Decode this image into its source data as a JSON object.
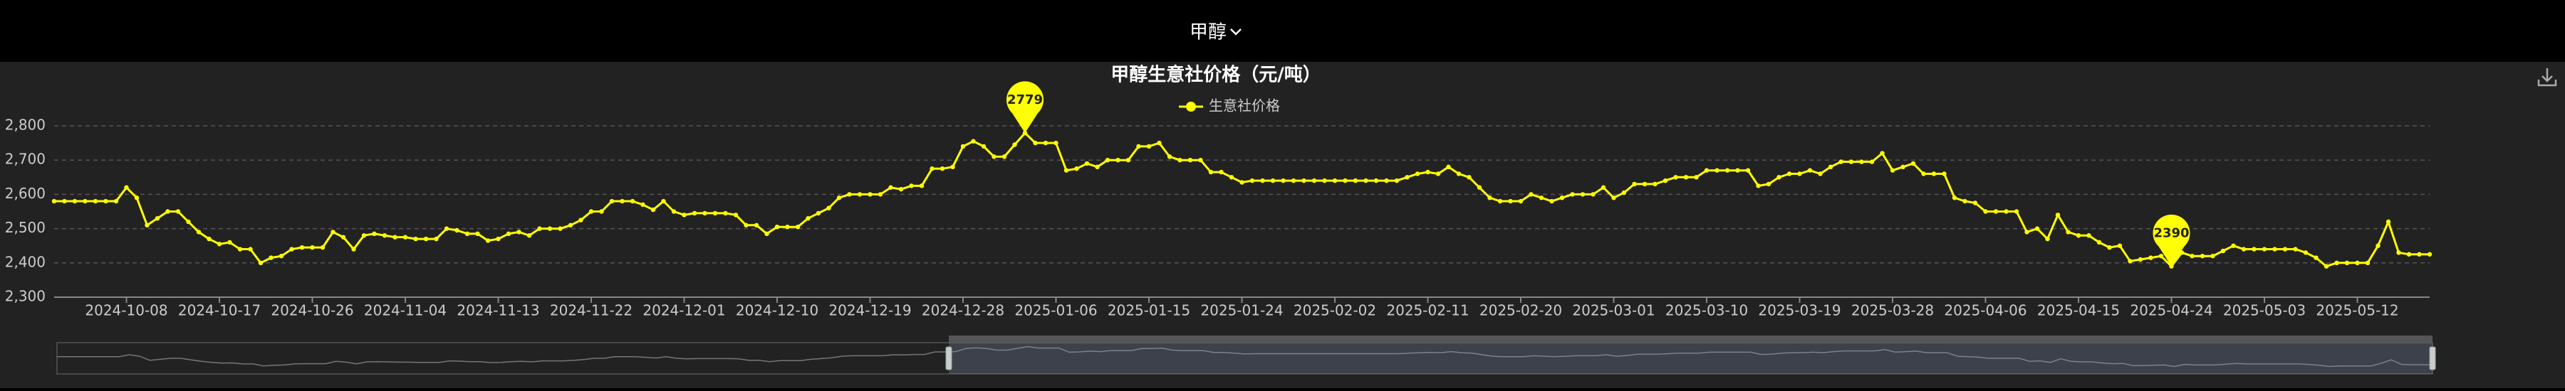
{
  "header": {
    "selector": "甲醇"
  },
  "chart_data": {
    "type": "line",
    "title": "甲醇生意社价格（元/吨）",
    "categories": [
      null,
      null,
      null,
      null,
      null,
      null,
      null,
      "2024-10-08",
      null,
      null,
      null,
      null,
      null,
      null,
      null,
      null,
      "2024-10-17",
      null,
      null,
      null,
      null,
      null,
      null,
      null,
      null,
      "2024-10-26",
      null,
      null,
      null,
      null,
      null,
      null,
      null,
      null,
      "2024-11-04",
      null,
      null,
      null,
      null,
      null,
      null,
      null,
      null,
      "2024-11-13",
      null,
      null,
      null,
      null,
      null,
      null,
      null,
      null,
      "2024-11-22",
      null,
      null,
      null,
      null,
      null,
      null,
      null,
      null,
      "2024-12-01",
      null,
      null,
      null,
      null,
      null,
      null,
      null,
      null,
      "2024-12-10",
      null,
      null,
      null,
      null,
      null,
      null,
      null,
      null,
      "2024-12-19",
      null,
      null,
      null,
      null,
      null,
      null,
      null,
      null,
      "2024-12-28",
      null,
      null,
      null,
      null,
      null,
      null,
      null,
      null,
      "2025-01-06",
      null,
      null,
      null,
      null,
      null,
      null,
      null,
      null,
      "2025-01-15",
      null,
      null,
      null,
      null,
      null,
      null,
      null,
      null,
      "2025-01-24",
      null,
      null,
      null,
      null,
      null,
      null,
      null,
      null,
      "2025-02-02",
      null,
      null,
      null,
      null,
      null,
      null,
      null,
      null,
      "2025-02-11",
      null,
      null,
      null,
      null,
      null,
      null,
      null,
      null,
      "2025-02-20",
      null,
      null,
      null,
      null,
      null,
      null,
      null,
      null,
      "2025-03-01",
      null,
      null,
      null,
      null,
      null,
      null,
      null,
      null,
      "2025-03-10",
      null,
      null,
      null,
      null,
      null,
      null,
      null,
      null,
      "2025-03-19",
      null,
      null,
      null,
      null,
      null,
      null,
      null,
      null,
      "2025-03-28",
      null,
      null,
      null,
      null,
      null,
      null,
      null,
      null,
      "2025-04-06",
      null,
      null,
      null,
      null,
      null,
      null,
      null,
      null,
      "2025-04-15",
      null,
      null,
      null,
      null,
      null,
      null,
      null,
      null,
      "2025-04-24",
      null,
      null,
      null,
      null,
      null,
      null,
      null,
      null,
      "2025-05-03",
      null,
      null,
      null,
      null,
      null,
      null,
      null,
      null,
      "2025-05-12",
      null,
      null,
      null,
      null,
      null,
      null,
      null
    ],
    "series": [
      {
        "name": "生意社价格",
        "color": "#ffff00",
        "values": [
          2580,
          2580,
          2580,
          2580,
          2580,
          2580,
          2580,
          2620,
          2590,
          2510,
          2530,
          2550,
          2550,
          2520,
          2490,
          2470,
          2455,
          2460,
          2440,
          2440,
          2400,
          2415,
          2420,
          2440,
          2445,
          2445,
          2445,
          2490,
          2475,
          2440,
          2480,
          2485,
          2480,
          2475,
          2475,
          2470,
          2470,
          2470,
          2500,
          2495,
          2485,
          2485,
          2465,
          2470,
          2485,
          2490,
          2480,
          2500,
          2500,
          2500,
          2510,
          2525,
          2550,
          2550,
          2580,
          2580,
          2580,
          2570,
          2555,
          2580,
          2550,
          2540,
          2545,
          2545,
          2545,
          2545,
          2540,
          2510,
          2510,
          2485,
          2505,
          2505,
          2505,
          2530,
          2545,
          2560,
          2590,
          2600,
          2600,
          2600,
          2600,
          2620,
          2615,
          2625,
          2625,
          2675,
          2675,
          2680,
          2740,
          2755,
          2740,
          2710,
          2710,
          2745,
          2779,
          2750,
          2750,
          2750,
          2670,
          2675,
          2690,
          2680,
          2700,
          2700,
          2700,
          2740,
          2740,
          2750,
          2710,
          2700,
          2700,
          2700,
          2665,
          2665,
          2650,
          2635,
          2640,
          2640,
          2640,
          2640,
          2640,
          2640,
          2640,
          2640,
          2640,
          2640,
          2640,
          2640,
          2640,
          2640,
          2640,
          2650,
          2660,
          2665,
          2660,
          2680,
          2660,
          2650,
          2620,
          2590,
          2580,
          2580,
          2580,
          2600,
          2590,
          2580,
          2590,
          2600,
          2600,
          2600,
          2620,
          2590,
          2605,
          2630,
          2630,
          2630,
          2640,
          2650,
          2650,
          2650,
          2670,
          2670,
          2670,
          2670,
          2670,
          2625,
          2630,
          2650,
          2660,
          2660,
          2670,
          2660,
          2680,
          2695,
          2695,
          2695,
          2695,
          2720,
          2670,
          2680,
          2690,
          2660,
          2660,
          2660,
          2590,
          2580,
          2575,
          2550,
          2550,
          2550,
          2550,
          2490,
          2500,
          2470,
          2540,
          2490,
          2480,
          2480,
          2460,
          2445,
          2450,
          2405,
          2410,
          2415,
          2420,
          2390,
          2430,
          2420,
          2420,
          2420,
          2435,
          2450,
          2440,
          2440,
          2440,
          2440,
          2440,
          2440,
          2430,
          2415,
          2390,
          2400,
          2400,
          2400,
          2400,
          2450,
          2520,
          2430,
          2425,
          2425,
          2425
        ]
      }
    ],
    "ylim": [
      2300,
      2800
    ],
    "yticks": [
      {
        "value": 2300,
        "label": "2,300"
      },
      {
        "value": 2400,
        "label": "2,400"
      },
      {
        "value": 2500,
        "label": "2,500"
      },
      {
        "value": 2600,
        "label": "2,600"
      },
      {
        "value": 2700,
        "label": "2,700"
      },
      {
        "value": 2800,
        "label": "2,800"
      }
    ],
    "grid": true,
    "mark_points": [
      "max",
      "min"
    ],
    "legend": "top"
  }
}
